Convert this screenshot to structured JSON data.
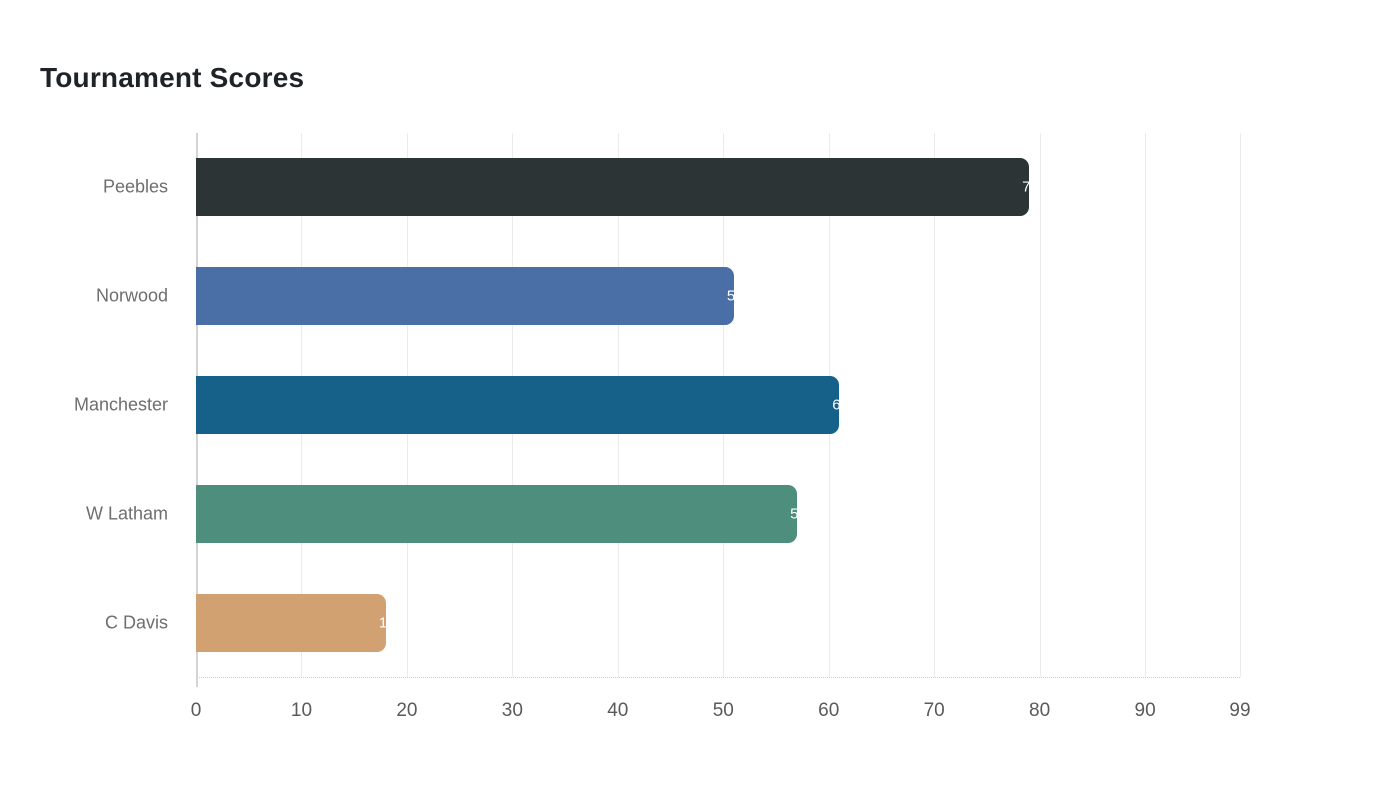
{
  "page": {
    "title": "Tournament Scores"
  },
  "chart_data": {
    "type": "bar",
    "orientation": "horizontal",
    "title": "Tournament Scores",
    "categories": [
      "Peebles",
      "Norwood",
      "Manchester",
      "W Latham",
      "C Davis"
    ],
    "values": [
      79,
      51,
      61,
      57,
      18
    ],
    "bar_colors": [
      "#2c3436",
      "#4a6fa6",
      "#16618a",
      "#4d8e7c",
      "#d2a172"
    ],
    "value_label_color": "#ffffff",
    "xlabel": "",
    "ylabel": "",
    "xlim": [
      0,
      99
    ],
    "x_ticks": [
      0,
      10,
      20,
      30,
      40,
      50,
      60,
      70,
      80,
      90,
      99
    ],
    "grid": true,
    "gridline_color": "#ebebeb",
    "axis_line_color": "#d4d4d4",
    "legend": false
  }
}
